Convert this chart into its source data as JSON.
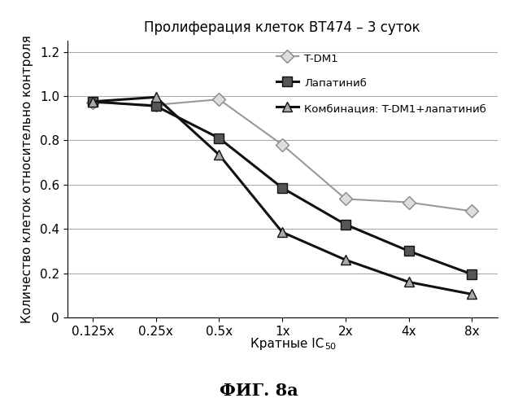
{
  "title": "Пролиферация клеток BT474 – 3 суток",
  "ylabel": "Количество клеток относительно контроля",
  "footnote": "ФИГ. 8а",
  "xlabel_main": "Кратные IC",
  "xlabel_sub": "50",
  "x_labels": [
    "0.125x",
    "0.25x",
    "0.5x",
    "1x",
    "2x",
    "4x",
    "8x"
  ],
  "x_values": [
    0,
    1,
    2,
    3,
    4,
    5,
    6
  ],
  "series": [
    {
      "name": "T-DM1",
      "y": [
        0.97,
        0.96,
        0.985,
        0.78,
        0.535,
        0.52,
        0.48
      ],
      "color": "#999999",
      "linewidth": 1.5,
      "marker": "D",
      "markersize": 8,
      "markerfacecolor": "#dddddd",
      "markeredgecolor": "#888888",
      "linestyle": "-"
    },
    {
      "name": "Лапатиниб",
      "y": [
        0.975,
        0.955,
        0.81,
        0.585,
        0.42,
        0.3,
        0.195
      ],
      "color": "#111111",
      "linewidth": 2.2,
      "marker": "s",
      "markersize": 9,
      "markerfacecolor": "#555555",
      "markeredgecolor": "#111111",
      "linestyle": "-"
    },
    {
      "name": "Комбинация: T-DM1+лапатиниб",
      "y": [
        0.975,
        0.995,
        0.735,
        0.385,
        0.26,
        0.16,
        0.105
      ],
      "color": "#111111",
      "linewidth": 2.2,
      "marker": "^",
      "markersize": 9,
      "markerfacecolor": "#aaaaaa",
      "markeredgecolor": "#111111",
      "linestyle": "-"
    }
  ],
  "ylim": [
    0,
    1.25
  ],
  "yticks": [
    0,
    0.2,
    0.4,
    0.6,
    0.8,
    1.0,
    1.2
  ],
  "background_color": "#ffffff",
  "grid_color": "#aaaaaa"
}
